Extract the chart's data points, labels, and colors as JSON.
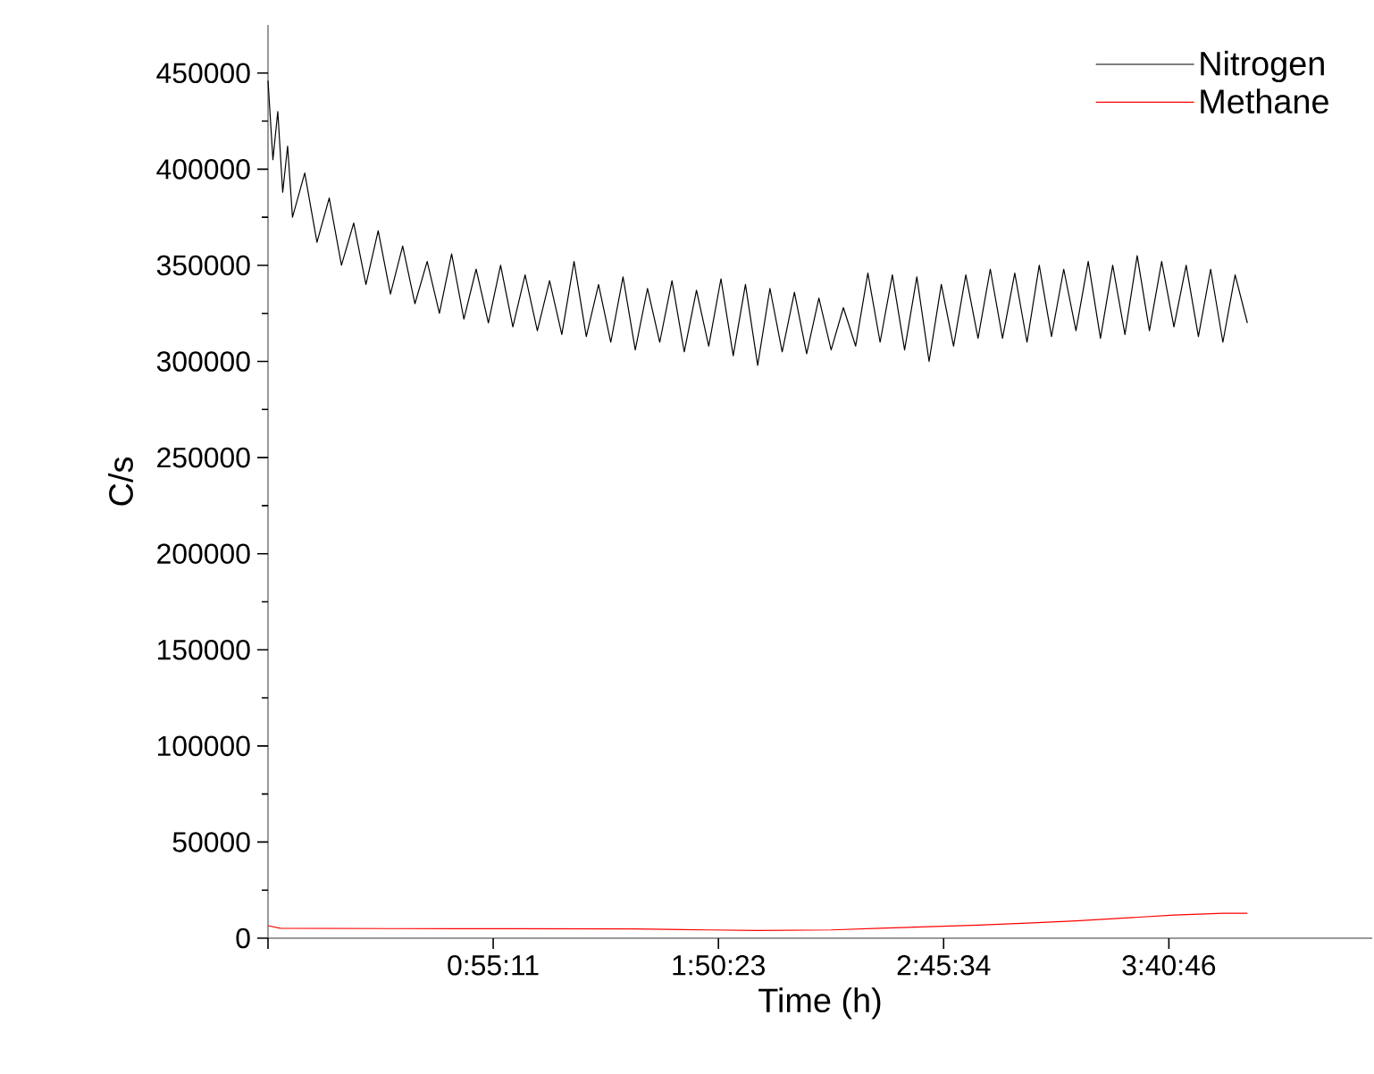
{
  "chart_data": {
    "type": "line",
    "xlabel": "Time (h)",
    "ylabel": "C/s",
    "xlim": [
      0,
      4.51
    ],
    "ylim": [
      0,
      475000
    ],
    "xticks": [
      {
        "value": 0,
        "label": null
      },
      {
        "value": 0.91972,
        "label": "0:55:11"
      },
      {
        "value": 1.83972,
        "label": "1:50:23"
      },
      {
        "value": 2.75944,
        "label": "2:45:34"
      },
      {
        "value": 3.67944,
        "label": "3:40:46"
      }
    ],
    "yticks": [
      0,
      50000,
      100000,
      150000,
      200000,
      250000,
      300000,
      350000,
      400000,
      450000
    ],
    "legend": "top right",
    "series": [
      {
        "name": "Nitrogen",
        "color": "#000000",
        "x": [
          0,
          0.02,
          0.04,
          0.06,
          0.08,
          0.1,
          0.15,
          0.2,
          0.25,
          0.3,
          0.35,
          0.4,
          0.45,
          0.5,
          0.55,
          0.6,
          0.65,
          0.7,
          0.75,
          0.8,
          0.85,
          0.9,
          0.95,
          1.0,
          1.05,
          1.1,
          1.15,
          1.2,
          1.25,
          1.3,
          1.35,
          1.4,
          1.45,
          1.5,
          1.55,
          1.6,
          1.65,
          1.7,
          1.75,
          1.8,
          1.85,
          1.9,
          1.95,
          2.0,
          2.05,
          2.1,
          2.15,
          2.2,
          2.25,
          2.3,
          2.35,
          2.4,
          2.45,
          2.5,
          2.55,
          2.6,
          2.65,
          2.7,
          2.75,
          2.8,
          2.85,
          2.9,
          2.95,
          3.0,
          3.05,
          3.1,
          3.15,
          3.2,
          3.25,
          3.3,
          3.35,
          3.4,
          3.45,
          3.5,
          3.55,
          3.6,
          3.65,
          3.7,
          3.75,
          3.8,
          3.85,
          3.9,
          3.95,
          4.0
        ],
        "values": [
          446000,
          405000,
          430000,
          388000,
          412000,
          375000,
          398000,
          362000,
          385000,
          350000,
          372000,
          340000,
          368000,
          335000,
          360000,
          330000,
          352000,
          325000,
          356000,
          322000,
          348000,
          320000,
          350000,
          318000,
          345000,
          316000,
          342000,
          314000,
          352000,
          313000,
          340000,
          310000,
          344000,
          306000,
          338000,
          310000,
          342000,
          305000,
          337000,
          308000,
          343000,
          303000,
          340000,
          298000,
          338000,
          305000,
          336000,
          304000,
          333000,
          306000,
          328000,
          308000,
          346000,
          310000,
          345000,
          306000,
          344000,
          300000,
          340000,
          308000,
          345000,
          312000,
          348000,
          312000,
          346000,
          310000,
          350000,
          313000,
          348000,
          316000,
          352000,
          312000,
          350000,
          314000,
          355000,
          316000,
          352000,
          318000,
          350000,
          313000,
          348000,
          310000,
          345000,
          320000
        ]
      },
      {
        "name": "Methane",
        "color": "#ff0000",
        "x": [
          0,
          0.05,
          0.5,
          1.0,
          1.5,
          1.8,
          2.0,
          2.3,
          2.5,
          2.7,
          2.9,
          3.1,
          3.3,
          3.5,
          3.7,
          3.9,
          4.0
        ],
        "values": [
          6500,
          5200,
          5000,
          4900,
          4800,
          4300,
          4000,
          4300,
          5200,
          6000,
          6800,
          7800,
          9000,
          10500,
          12000,
          13000,
          13000
        ]
      }
    ]
  }
}
